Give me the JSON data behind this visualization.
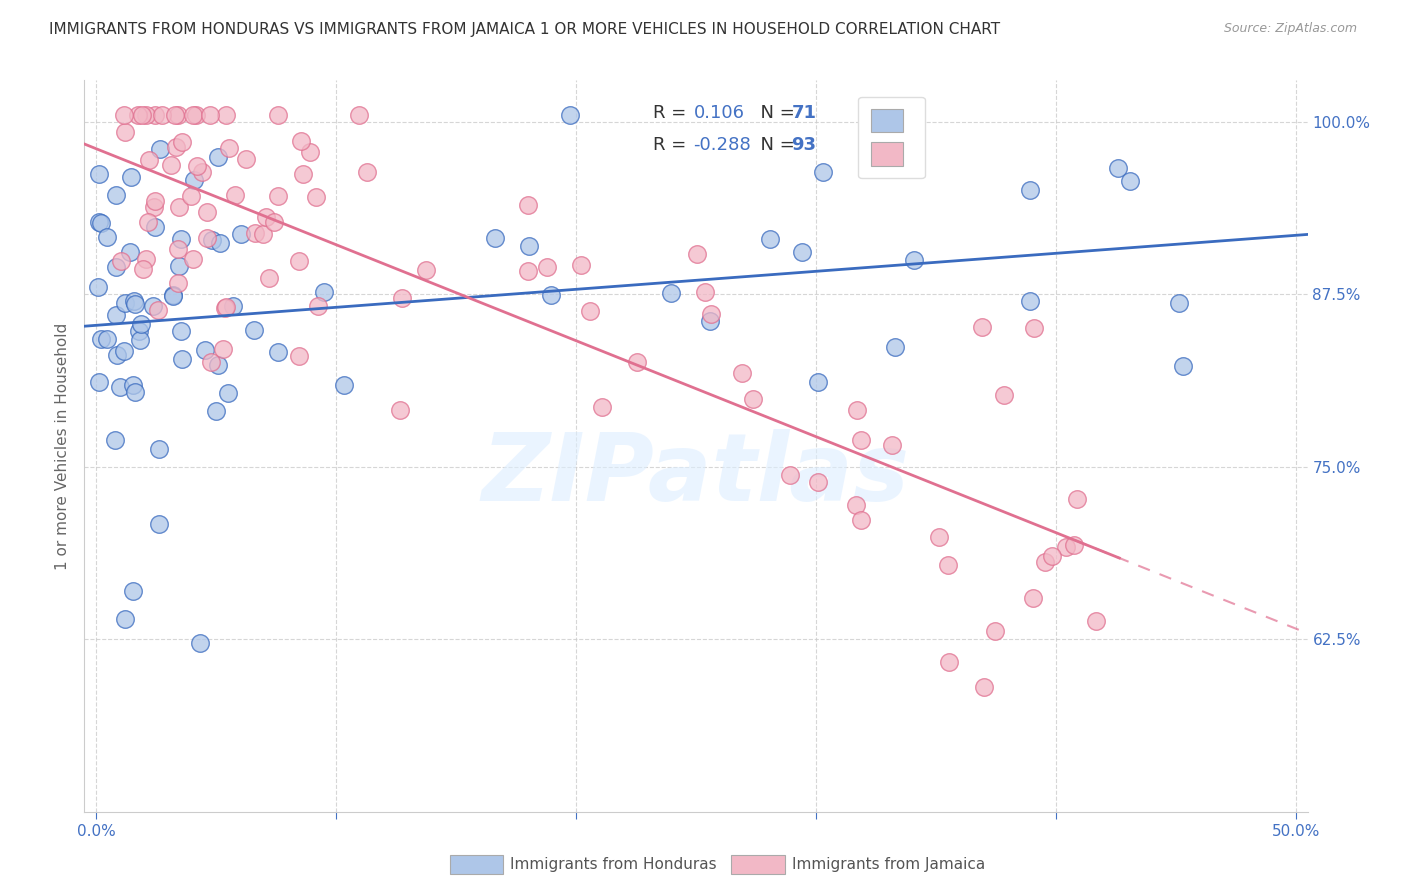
{
  "title": "IMMIGRANTS FROM HONDURAS VS IMMIGRANTS FROM JAMAICA 1 OR MORE VEHICLES IN HOUSEHOLD CORRELATION CHART",
  "source": "Source: ZipAtlas.com",
  "ylabel": "1 or more Vehicles in Household",
  "ylim": [
    0.5,
    1.03
  ],
  "xlim": [
    -0.005,
    0.505
  ],
  "yticks": [
    0.625,
    0.75,
    0.875,
    1.0
  ],
  "ytick_labels": [
    "62.5%",
    "75.0%",
    "87.5%",
    "100.0%"
  ],
  "color_honduras": "#aec6e8",
  "color_jamaica": "#f2b8c6",
  "line_color_honduras": "#3a6bbf",
  "line_color_jamaica": "#e07090",
  "watermark": "ZIPatlas",
  "background_color": "#ffffff",
  "tick_color": "#4472c4",
  "title_color": "#333333",
  "source_color": "#999999",
  "legend_text_color": "#333333",
  "legend_val_color": "#4472c4"
}
